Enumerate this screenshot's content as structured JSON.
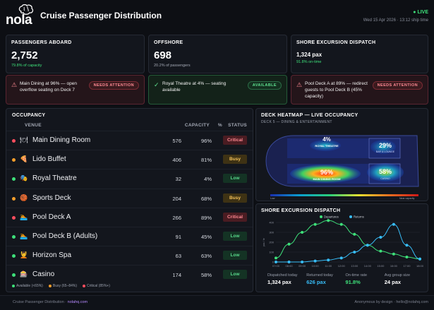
{
  "header": {
    "logo": "nola",
    "title": "Cruise Passenger Distribution",
    "live": "● LIVE",
    "datetime": "Wed 15 Apr 2026 · 13:12 ship time"
  },
  "kpis": [
    {
      "title": "PASSENGERS ABOARD",
      "value": "2,752",
      "sub": "79.8% of capacity",
      "sub_color": "#3ee07a"
    },
    {
      "title": "OFFSHORE",
      "value": "698",
      "sub": "20.2% of passengers",
      "sub_color": "#a3a8b4"
    },
    {
      "title": "SHORE EXCURSION DISPATCH",
      "value": "1,324 pax",
      "sub": "91.8% on-time",
      "sub_color": "#3ee07a"
    }
  ],
  "alerts": [
    {
      "icon": "⚠",
      "message": "Main Dining at 96% — open overflow seating on Deck 7",
      "badge": "NEEDS ATTENTION",
      "kind": "red"
    },
    {
      "icon": "✓",
      "message": "Royal Theatre at 4% — seating available",
      "badge": "AVAILABLE",
      "kind": "green"
    },
    {
      "icon": "⚠",
      "message": "Pool Deck A at 89% — redirect guests to Pool Deck B (45% capacity)",
      "badge": "NEEDS ATTENTION",
      "kind": "red"
    }
  ],
  "occupancy": {
    "title": "OCCUPANCY",
    "columns": {
      "venue": "VENUE",
      "capacity": "CAPACITY",
      "pct": "%",
      "status": "STATUS"
    },
    "rows": [
      {
        "dot": "#ff4d5e",
        "icon": "🍽",
        "name": "Main Dining Room",
        "capacity": "576",
        "pct": "96%",
        "status": "Critical"
      },
      {
        "dot": "#f59e2b",
        "icon": "🍕",
        "name": "Lido Buffet",
        "capacity": "406",
        "pct": "81%",
        "status": "Busy"
      },
      {
        "dot": "#3ee07a",
        "icon": "🎭",
        "name": "Royal Theatre",
        "capacity": "32",
        "pct": "4%",
        "status": "Low"
      },
      {
        "dot": "#f59e2b",
        "icon": "🏀",
        "name": "Sports Deck",
        "capacity": "204",
        "pct": "68%",
        "status": "Busy"
      },
      {
        "dot": "#ff4d5e",
        "icon": "🏊",
        "name": "Pool Deck A",
        "capacity": "266",
        "pct": "89%",
        "status": "Critical"
      },
      {
        "dot": "#3ee07a",
        "icon": "🏊",
        "name": "Pool Deck B (Adults)",
        "capacity": "91",
        "pct": "45%",
        "status": "Low"
      },
      {
        "dot": "#3ee07a",
        "icon": "💆",
        "name": "Horizon Spa",
        "capacity": "63",
        "pct": "63%",
        "status": "Low"
      },
      {
        "dot": "#3ee07a",
        "icon": "🎰",
        "name": "Casino",
        "capacity": "174",
        "pct": "58%",
        "status": "Low"
      }
    ],
    "legend": [
      {
        "label": "Available (<65%)",
        "color": "#3ee07a"
      },
      {
        "label": "Busy (65–84%)",
        "color": "#f59e2b"
      },
      {
        "label": "Critical (85%+)",
        "color": "#ff4d5e"
      }
    ]
  },
  "heatmap": {
    "title": "DECK HEATMAP — LIVE OCCUPANCY",
    "subtitle": "DECK 5 — DINING & ENTERTAINMENT",
    "zones": [
      {
        "pct": "4%",
        "label": "ROYAL THEATRE"
      },
      {
        "pct": "29%",
        "label": "BAR & LOUNGE"
      },
      {
        "pct": "96%",
        "label": "MAIN DINING ROOM"
      },
      {
        "pct": "58%",
        "label": "CASINO"
      }
    ],
    "scale_low": "Low",
    "scale_high": "Near capacity"
  },
  "chart_data": {
    "type": "line",
    "title": "SHORE EXCURSION DISPATCH",
    "x": [
      "07:00",
      "08:00",
      "09:00",
      "10:00",
      "11:00",
      "12:00",
      "13:00",
      "14:00",
      "15:00",
      "16:00",
      "17:00",
      "18:00"
    ],
    "series": [
      {
        "name": "Departures",
        "color": "#3ee07a",
        "values": [
          40,
          180,
          300,
          380,
          420,
          380,
          280,
          170,
          110,
          80,
          50,
          30
        ]
      },
      {
        "name": "Returns",
        "color": "#38bdf8",
        "values": [
          0,
          0,
          0,
          10,
          20,
          40,
          100,
          170,
          250,
          380,
          170,
          30
        ]
      }
    ],
    "ylabel": "pax / hr",
    "ylim": [
      0,
      400
    ],
    "yticks": [
      0,
      100,
      200,
      300,
      400
    ]
  },
  "shore_stats": [
    {
      "label": "Dispatched today",
      "value": "1,324 pax",
      "color": "#ffffff"
    },
    {
      "label": "Returned today",
      "value": "626 pax",
      "color": "#38bdf8"
    },
    {
      "label": "On-time rate",
      "value": "91.8%",
      "color": "#3ee07a"
    },
    {
      "label": "Avg group size",
      "value": "24 pax",
      "color": "#ffffff"
    }
  ],
  "footer": {
    "left": "Cruise Passenger Distribution",
    "sep": "·",
    "brand": "nolahq.com",
    "right": "Anonymous by design · hello@nolahq.com"
  }
}
